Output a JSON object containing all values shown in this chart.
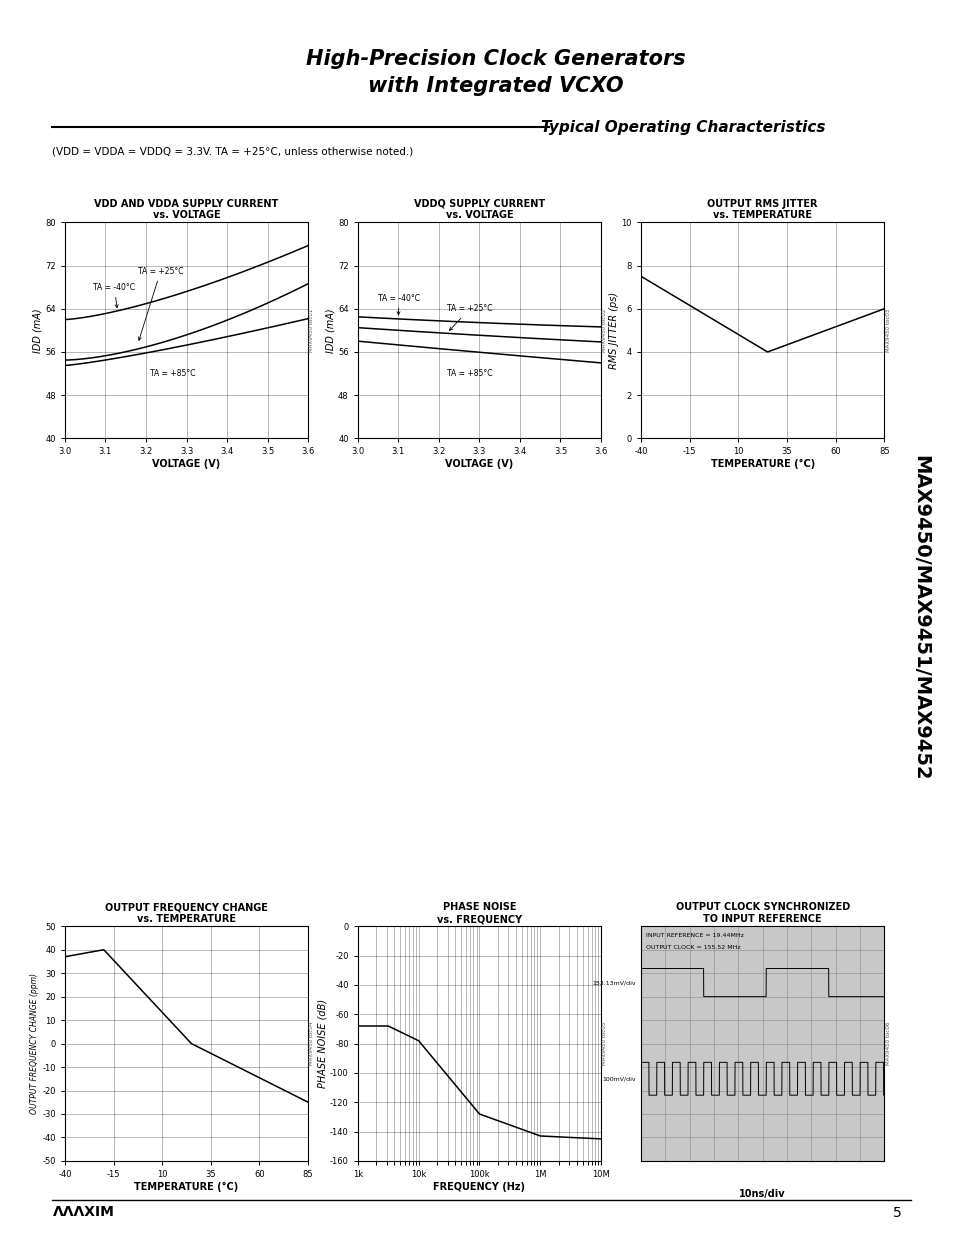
{
  "main_title_line1": "High-Precision Clock Generators",
  "main_title_line2": "with Integrated VCXO",
  "section_title": "Typical Operating Characteristics",
  "subtitle_text": "(VDD = VDDA = VDDQ = 3.3V. TA = +25°C, unless otherwise noted.)",
  "side_label": "MAX9450/MAX9451/MAX9452",
  "page_num": "5",
  "chart1": {
    "title_text1": "VDD AND VDDA SUPPLY CURRENT",
    "title_text2": "vs. VOLTAGE",
    "xlabel": "VOLTAGE (V)",
    "ylabel": "IDD (mA)",
    "xlim": [
      3.0,
      3.6
    ],
    "ylim": [
      40,
      80
    ],
    "yticks": [
      40,
      48,
      56,
      64,
      72,
      80
    ],
    "xticks": [
      3.0,
      3.1,
      3.2,
      3.3,
      3.4,
      3.5,
      3.6
    ],
    "watermark": "MAX9450 toc01"
  },
  "chart2": {
    "title_text1": "VDDQ SUPPLY CURRENT",
    "title_text2": "vs. VOLTAGE",
    "xlabel": "VOLTAGE (V)",
    "ylabel": "IDD (mA)",
    "xlim": [
      3.0,
      3.6
    ],
    "ylim": [
      40,
      80
    ],
    "yticks": [
      40,
      48,
      56,
      64,
      72,
      80
    ],
    "xticks": [
      3.0,
      3.1,
      3.2,
      3.3,
      3.4,
      3.5,
      3.6
    ],
    "watermark": "MAX9450 toc02"
  },
  "chart3": {
    "title_text1": "OUTPUT RMS JITTER",
    "title_text2": "vs. TEMPERATURE",
    "xlabel": "TEMPERATURE (°C)",
    "ylabel": "RMS JITTER (ps)",
    "xlim": [
      -40,
      85
    ],
    "ylim": [
      0,
      10
    ],
    "yticks": [
      0,
      2,
      4,
      6,
      8,
      10
    ],
    "xticks": [
      -40,
      -15,
      10,
      35,
      60,
      85
    ],
    "watermark": "MAX9450 toc03"
  },
  "chart4": {
    "title_text1": "OUTPUT FREQUENCY CHANGE",
    "title_text2": "vs. TEMPERATURE",
    "xlabel": "TEMPERATURE (°C)",
    "ylabel": "OUTPUT FREQUENCY CHANGE (ppm)",
    "xlim": [
      -40,
      85
    ],
    "ylim": [
      -50,
      50
    ],
    "yticks": [
      -50,
      -40,
      -30,
      -20,
      -10,
      0,
      10,
      20,
      30,
      40,
      50
    ],
    "xticks": [
      -40,
      -15,
      10,
      35,
      60,
      85
    ],
    "watermark": "MAX9450 toc04"
  },
  "chart5": {
    "title_text1": "PHASE NOISE",
    "title_text2": "vs. FREQUENCY",
    "xlabel": "FREQUENCY (Hz)",
    "ylabel": "PHASE NOISE (dB)",
    "ylim": [
      -160,
      0
    ],
    "yticks": [
      0,
      -20,
      -40,
      -60,
      -80,
      -100,
      -120,
      -140,
      -160
    ],
    "xtick_labels": [
      "1k",
      "10k",
      "100k",
      "1M",
      "10M"
    ],
    "watermark": "MAX9450 toc05"
  },
  "chart6": {
    "title_text1": "OUTPUT CLOCK SYNCHRONIZED",
    "title_text2": "TO INPUT REFERENCE",
    "annotation1": "INPUT REFERENCE = 19.44MHz",
    "annotation2": "OUTPUT CLOCK = 155.52 MHz",
    "annotation3": "153.13mV/div",
    "annotation4": "100mV/div",
    "annotation5": "10ns/div",
    "watermark": "MAX9450 toc06"
  }
}
